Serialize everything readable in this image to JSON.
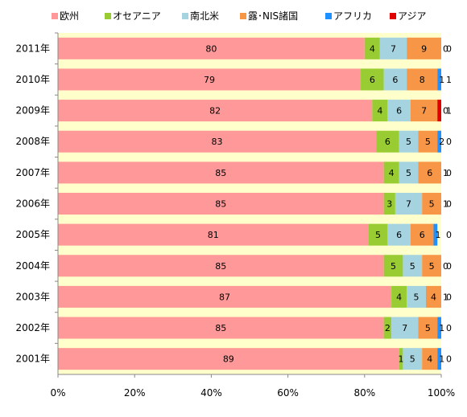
{
  "chart_data": {
    "type": "bar",
    "orientation": "horizontal",
    "stacked": true,
    "percent": true,
    "title": "",
    "xlabel": "",
    "ylabel": "",
    "xlim": [
      0,
      100
    ],
    "x_ticks": [
      "0%",
      "20%",
      "40%",
      "60%",
      "80%",
      "100%"
    ],
    "grid": false,
    "legend_position": "top",
    "plot_background": "#ffffcc",
    "categories": [
      "2011年",
      "2010年",
      "2009年",
      "2008年",
      "2007年",
      "2006年",
      "2005年",
      "2004年",
      "2003年",
      "2002年",
      "2001年"
    ],
    "series": [
      {
        "name": "欧州",
        "color": "#ff9999",
        "values": [
          80,
          79,
          82,
          83,
          85,
          85,
          81,
          85,
          87,
          85,
          89
        ]
      },
      {
        "name": "オセアニア",
        "color": "#99cc33",
        "values": [
          4,
          6,
          4,
          6,
          4,
          3,
          5,
          5,
          4,
          2,
          1
        ]
      },
      {
        "name": "南北米",
        "color": "#a6d3e0",
        "values": [
          7,
          6,
          6,
          5,
          5,
          7,
          6,
          5,
          5,
          7,
          5
        ]
      },
      {
        "name": "露･NIS諸国",
        "color": "#f79646",
        "values": [
          9,
          8,
          7,
          5,
          6,
          5,
          6,
          5,
          4,
          5,
          4
        ]
      },
      {
        "name": "アフリカ",
        "color": "#1e90ff",
        "values": [
          0,
          1,
          0,
          2,
          1,
          1,
          1,
          0,
          1,
          1,
          1
        ]
      },
      {
        "name": "アジア",
        "color": "#e00000",
        "values": [
          0,
          1,
          1,
          0,
          0,
          0,
          0,
          0,
          0,
          0,
          0
        ]
      }
    ]
  }
}
